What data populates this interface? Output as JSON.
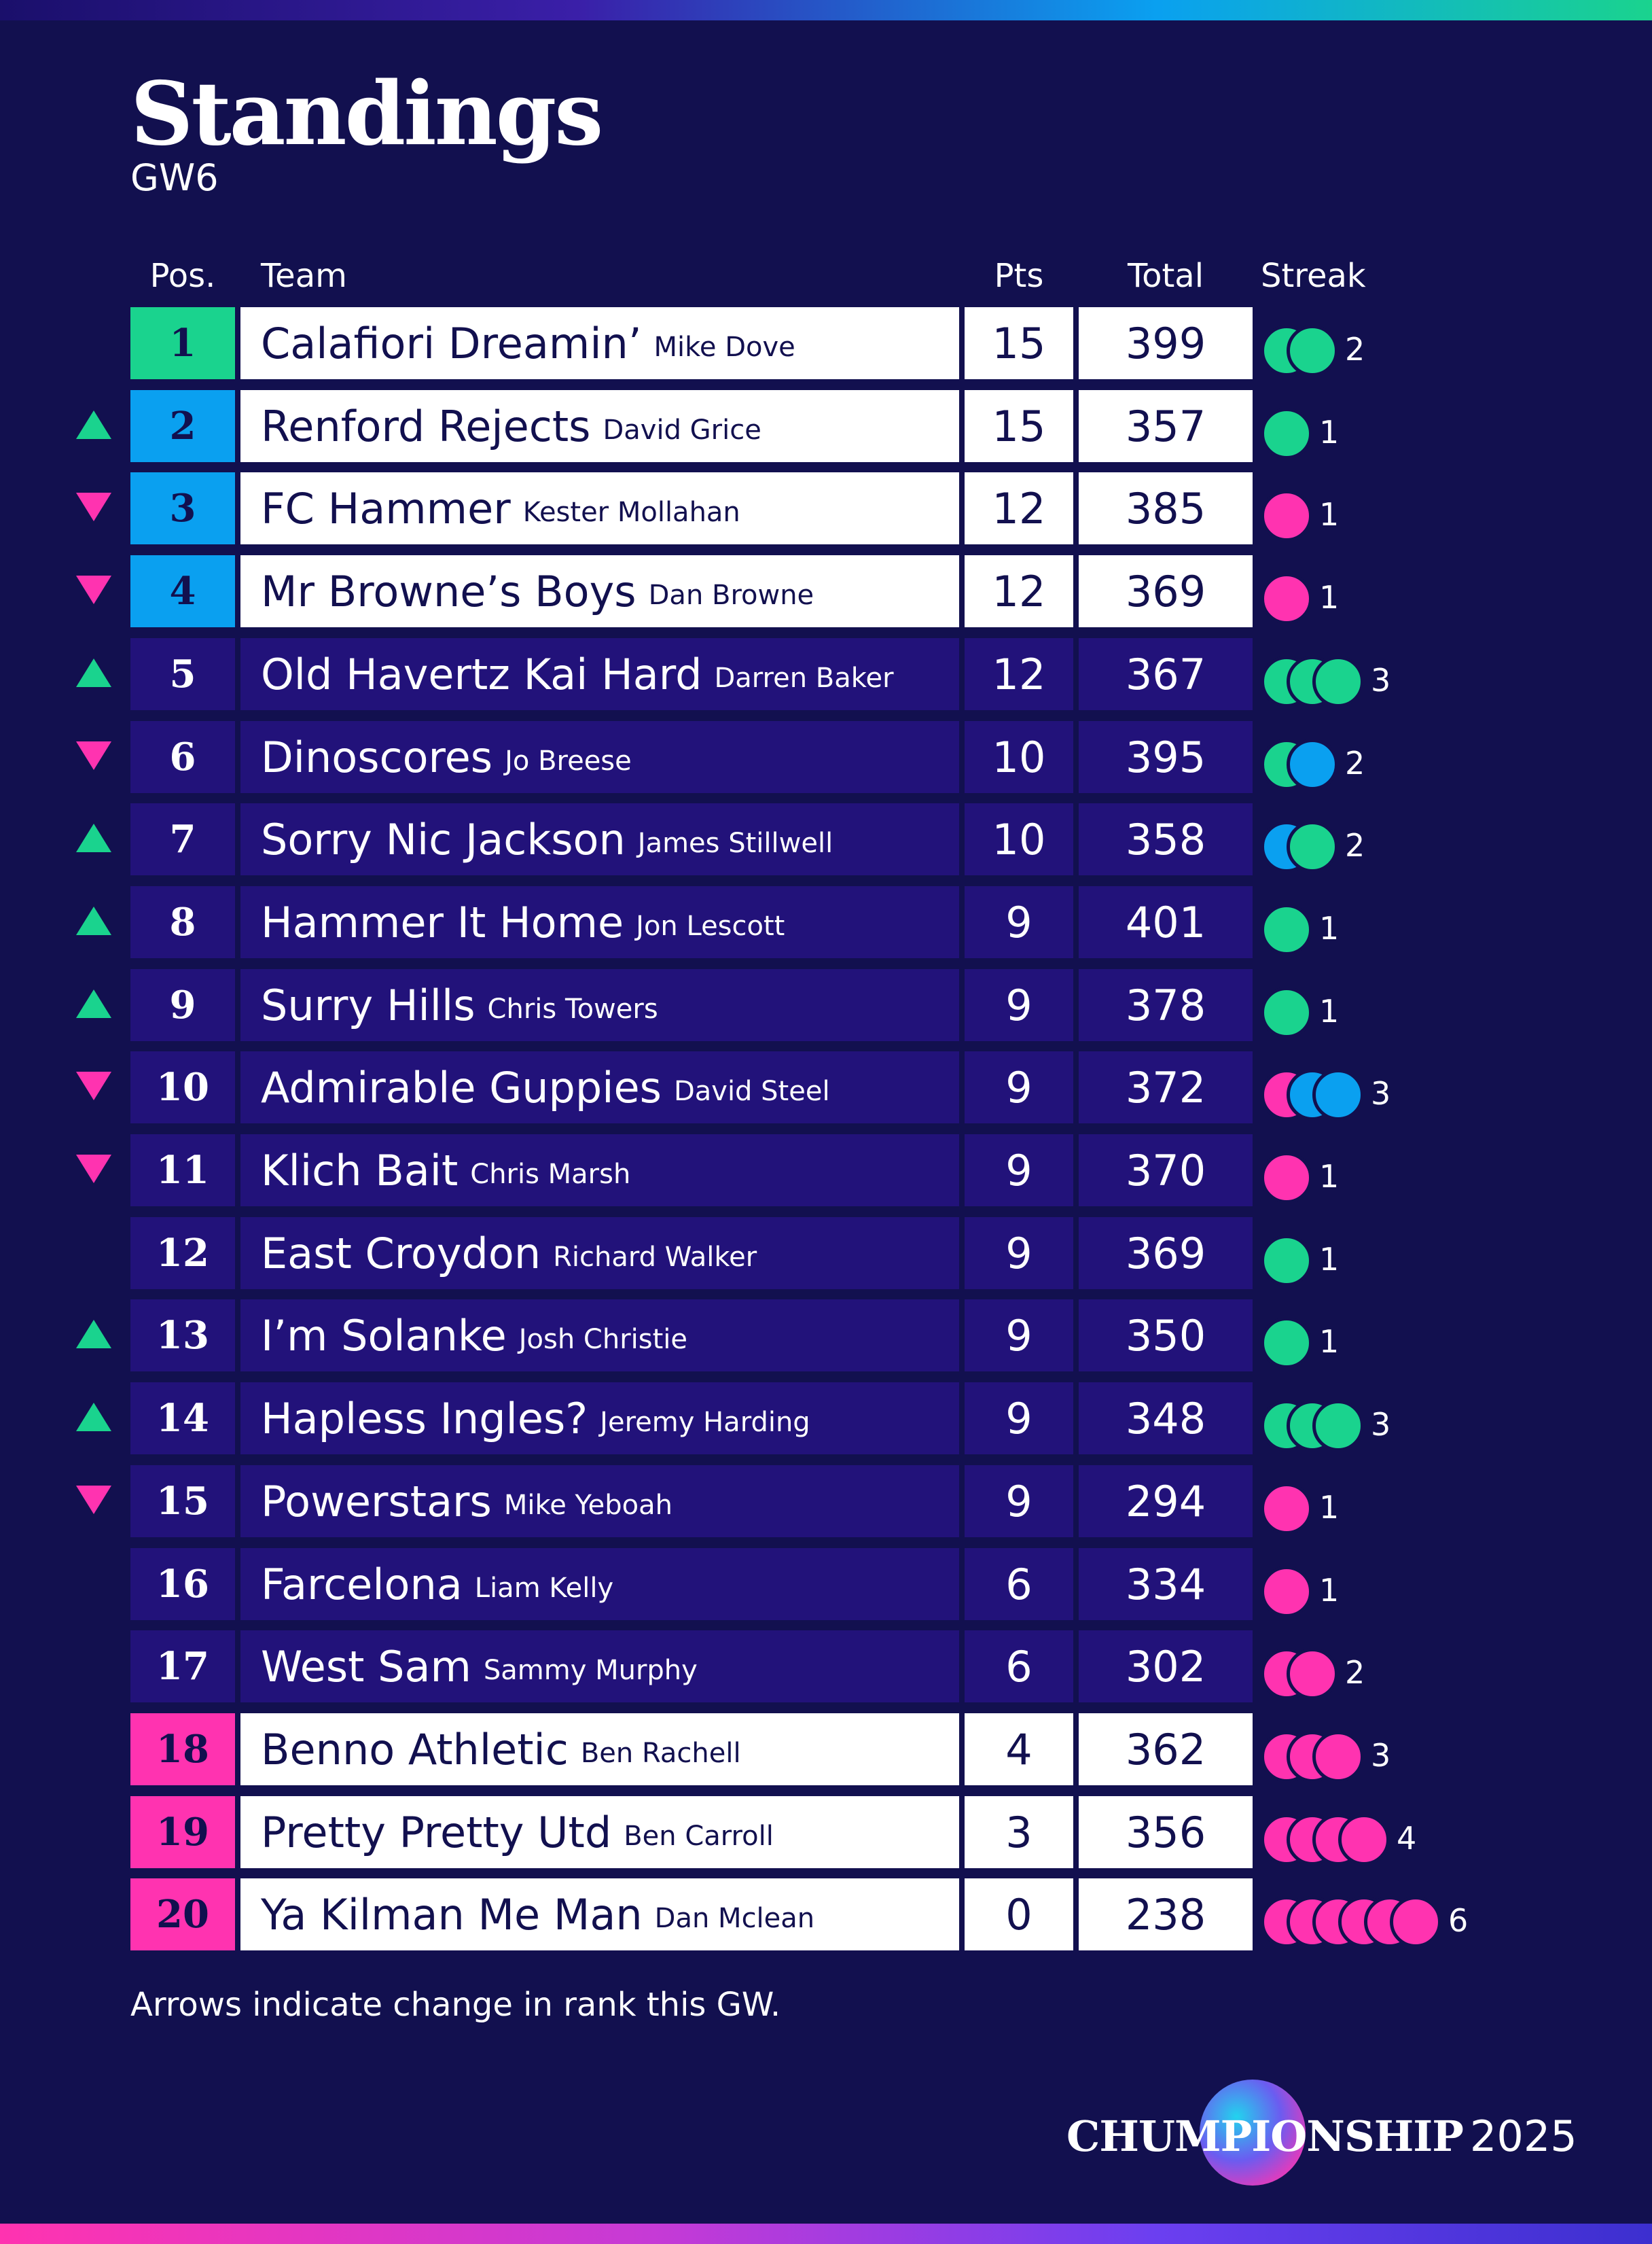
{
  "title": "Standings",
  "gameweek": "GW6",
  "columns": {
    "pos": "Pos.",
    "team": "Team",
    "pts": "Pts",
    "total": "Total",
    "streak": "Streak"
  },
  "colors": {
    "background": "#12104f",
    "green": "#1ad38e",
    "blue": "#0aa0f0",
    "pink": "#ff33b0",
    "row_dark": "#22127a",
    "row_light": "#ffffff"
  },
  "rows": [
    {
      "pos": "1",
      "team": "Calafiori Dreamin’",
      "manager": "Mike Dove",
      "pts": "15",
      "total": "399",
      "arrow": "none",
      "zone": "green",
      "style": "light",
      "streak": [
        "green",
        "green"
      ],
      "streak_count": "2"
    },
    {
      "pos": "2",
      "team": "Renford Rejects",
      "manager": "David Grice",
      "pts": "15",
      "total": "357",
      "arrow": "up",
      "zone": "blue",
      "style": "light",
      "streak": [
        "green"
      ],
      "streak_count": "1"
    },
    {
      "pos": "3",
      "team": "FC Hammer",
      "manager": "Kester Mollahan",
      "pts": "12",
      "total": "385",
      "arrow": "down",
      "zone": "blue",
      "style": "light",
      "streak": [
        "pink"
      ],
      "streak_count": "1"
    },
    {
      "pos": "4",
      "team": "Mr Browne’s Boys",
      "manager": "Dan Browne",
      "pts": "12",
      "total": "369",
      "arrow": "down",
      "zone": "blue",
      "style": "light",
      "streak": [
        "pink"
      ],
      "streak_count": "1"
    },
    {
      "pos": "5",
      "team": "Old Havertz Kai Hard",
      "manager": "Darren Baker",
      "pts": "12",
      "total": "367",
      "arrow": "up",
      "zone": "none",
      "style": "dark",
      "streak": [
        "green",
        "green",
        "green"
      ],
      "streak_count": "3"
    },
    {
      "pos": "6",
      "team": "Dinoscores",
      "manager": "Jo Breese",
      "pts": "10",
      "total": "395",
      "arrow": "down",
      "zone": "none",
      "style": "dark",
      "streak": [
        "green",
        "blue"
      ],
      "streak_count": "2"
    },
    {
      "pos": "7",
      "team": "Sorry Nic Jackson",
      "manager": "James Stillwell",
      "pts": "10",
      "total": "358",
      "arrow": "up",
      "zone": "none",
      "style": "dark",
      "streak": [
        "blue",
        "green"
      ],
      "streak_count": "2"
    },
    {
      "pos": "8",
      "team": "Hammer It Home",
      "manager": "Jon Lescott",
      "pts": "9",
      "total": "401",
      "arrow": "up",
      "zone": "none",
      "style": "dark",
      "streak": [
        "green"
      ],
      "streak_count": "1"
    },
    {
      "pos": "9",
      "team": "Surry Hills",
      "manager": "Chris Towers",
      "pts": "9",
      "total": "378",
      "arrow": "up",
      "zone": "none",
      "style": "dark",
      "streak": [
        "green"
      ],
      "streak_count": "1"
    },
    {
      "pos": "10",
      "team": "Admirable Guppies",
      "manager": "David Steel",
      "pts": "9",
      "total": "372",
      "arrow": "down",
      "zone": "none",
      "style": "dark",
      "streak": [
        "pink",
        "blue",
        "blue"
      ],
      "streak_count": "3"
    },
    {
      "pos": "11",
      "team": "Klich Bait",
      "manager": "Chris Marsh",
      "pts": "9",
      "total": "370",
      "arrow": "down",
      "zone": "none",
      "style": "dark",
      "streak": [
        "pink"
      ],
      "streak_count": "1"
    },
    {
      "pos": "12",
      "team": "East Croydon",
      "manager": "Richard Walker",
      "pts": "9",
      "total": "369",
      "arrow": "none",
      "zone": "none",
      "style": "dark",
      "streak": [
        "green"
      ],
      "streak_count": "1"
    },
    {
      "pos": "13",
      "team": "I’m Solanke",
      "manager": "Josh Christie",
      "pts": "9",
      "total": "350",
      "arrow": "up",
      "zone": "none",
      "style": "dark",
      "streak": [
        "green"
      ],
      "streak_count": "1"
    },
    {
      "pos": "14",
      "team": "Hapless Ingles?",
      "manager": "Jeremy Harding",
      "pts": "9",
      "total": "348",
      "arrow": "up",
      "zone": "none",
      "style": "dark",
      "streak": [
        "green",
        "green",
        "green"
      ],
      "streak_count": "3"
    },
    {
      "pos": "15",
      "team": "Powerstars",
      "manager": "Mike Yeboah",
      "pts": "9",
      "total": "294",
      "arrow": "down",
      "zone": "none",
      "style": "dark",
      "streak": [
        "pink"
      ],
      "streak_count": "1"
    },
    {
      "pos": "16",
      "team": "Farcelona",
      "manager": "Liam Kelly",
      "pts": "6",
      "total": "334",
      "arrow": "none",
      "zone": "none",
      "style": "dark",
      "streak": [
        "pink"
      ],
      "streak_count": "1"
    },
    {
      "pos": "17",
      "team": "West Sam",
      "manager": "Sammy Murphy",
      "pts": "6",
      "total": "302",
      "arrow": "none",
      "zone": "none",
      "style": "dark",
      "streak": [
        "pink",
        "pink"
      ],
      "streak_count": "2"
    },
    {
      "pos": "18",
      "team": "Benno Athletic",
      "manager": "Ben Rachell",
      "pts": "4",
      "total": "362",
      "arrow": "none",
      "zone": "pink",
      "style": "light",
      "streak": [
        "pink",
        "pink",
        "pink"
      ],
      "streak_count": "3"
    },
    {
      "pos": "19",
      "team": "Pretty Pretty Utd",
      "manager": "Ben Carroll",
      "pts": "3",
      "total": "356",
      "arrow": "none",
      "zone": "pink",
      "style": "light",
      "streak": [
        "pink",
        "pink",
        "pink",
        "pink"
      ],
      "streak_count": "4"
    },
    {
      "pos": "20",
      "team": "Ya Kilman Me Man",
      "manager": "Dan Mclean",
      "pts": "0",
      "total": "238",
      "arrow": "none",
      "zone": "pink",
      "style": "light",
      "streak": [
        "pink",
        "pink",
        "pink",
        "pink",
        "pink",
        "pink"
      ],
      "streak_count": "6"
    }
  ],
  "footnote": "Arrows indicate change in rank this GW.",
  "brand": {
    "left": "CHUMP",
    "middle": "IO",
    "right": "NSHIP",
    "year": "2025"
  }
}
